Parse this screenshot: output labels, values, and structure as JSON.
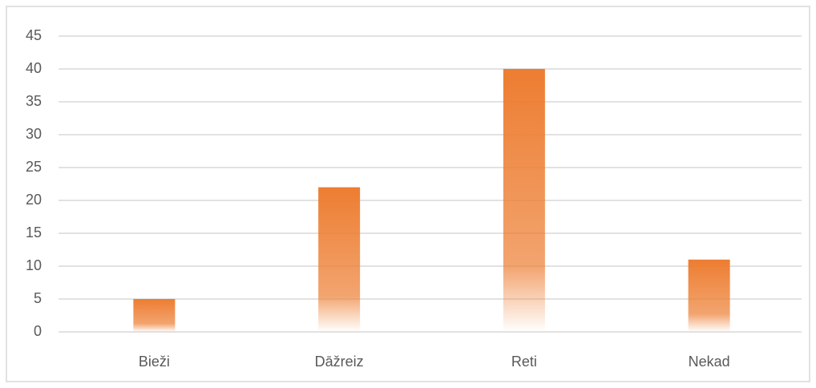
{
  "chart_data": {
    "type": "bar",
    "categories": [
      "Bieži",
      "Dāžreiz",
      "Reti",
      "Nekad"
    ],
    "values": [
      5,
      22,
      40,
      11
    ],
    "color": "#ed7d31",
    "ylim": [
      0,
      45
    ],
    "yticks": [
      0,
      5,
      10,
      15,
      20,
      25,
      30,
      35,
      40,
      45
    ],
    "grid": true
  }
}
